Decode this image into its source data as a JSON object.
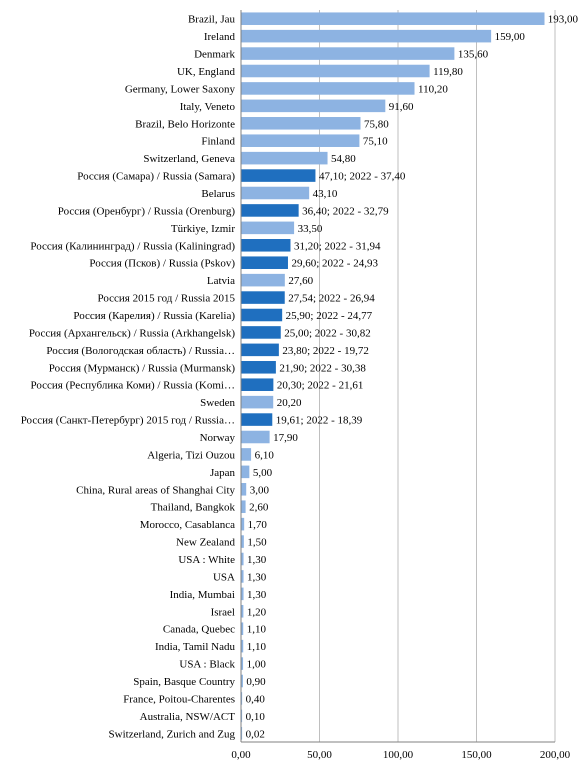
{
  "chart_data": {
    "type": "bar",
    "orientation": "horizontal",
    "title": "",
    "xlabel": "",
    "ylabel": "",
    "xlim": [
      0,
      200
    ],
    "grid": true,
    "legend": "none",
    "x_ticks": [
      "0,00",
      "50,00",
      "100,00",
      "150,00",
      "200,00"
    ],
    "x_tick_values": [
      0,
      50,
      100,
      150,
      200
    ],
    "colors": {
      "other": "#8db3e2",
      "russia": "#1f6fbf"
    },
    "categories": [
      {
        "label": "Brazil, Jau",
        "value": 193.0,
        "value_label": "193,00",
        "group": "other"
      },
      {
        "label": "Ireland",
        "value": 159.0,
        "value_label": "159,00",
        "group": "other"
      },
      {
        "label": "Denmark",
        "value": 135.6,
        "value_label": "135,60",
        "group": "other"
      },
      {
        "label": "UK, England",
        "value": 119.8,
        "value_label": "119,80",
        "group": "other"
      },
      {
        "label": "Germany, Lower Saxony",
        "value": 110.2,
        "value_label": "110,20",
        "group": "other"
      },
      {
        "label": "Italy, Veneto",
        "value": 91.6,
        "value_label": "91,60",
        "group": "other"
      },
      {
        "label": "Brazil, Belo Horizonte",
        "value": 75.8,
        "value_label": "75,80",
        "group": "other"
      },
      {
        "label": "Finland",
        "value": 75.1,
        "value_label": "75,10",
        "group": "other"
      },
      {
        "label": "Switzerland, Geneva",
        "value": 54.8,
        "value_label": "54,80",
        "group": "other"
      },
      {
        "label": "Россия (Самара) / Russia (Samara)",
        "value": 47.1,
        "value_label": "47,10; 2022 - 37,40",
        "group": "russia"
      },
      {
        "label": "Belarus",
        "value": 43.1,
        "value_label": "43,10",
        "group": "other"
      },
      {
        "label": "Россия (Оренбург) / Russia (Orenburg)",
        "value": 36.4,
        "value_label": "36,40; 2022 - 32,79",
        "group": "russia"
      },
      {
        "label": "Türkiye, Izmir",
        "value": 33.5,
        "value_label": "33,50",
        "group": "other"
      },
      {
        "label": "Россия (Калининград) / Russia (Kaliningrad)",
        "value": 31.2,
        "value_label": "31,20; 2022 - 31,94",
        "group": "russia"
      },
      {
        "label": "Россия (Псков) / Russia (Pskov)",
        "value": 29.6,
        "value_label": "29,60; 2022 - 24,93",
        "group": "russia"
      },
      {
        "label": "Latvia",
        "value": 27.6,
        "value_label": "27,60",
        "group": "other"
      },
      {
        "label": "Россия 2015 год / Russia 2015",
        "value": 27.54,
        "value_label": "27,54; 2022 - 26,94",
        "group": "russia"
      },
      {
        "label": "Россия (Карелия) / Russia (Karelia)",
        "value": 25.9,
        "value_label": "25,90; 2022 - 24,77",
        "group": "russia"
      },
      {
        "label": "Россия (Архангельск) / Russia (Arkhangelsk)",
        "value": 25.0,
        "value_label": "25,00; 2022 - 30,82",
        "group": "russia"
      },
      {
        "label": "Россия (Вологодская область) / Russia…",
        "value": 23.8,
        "value_label": "23,80; 2022 - 19,72",
        "group": "russia"
      },
      {
        "label": "Россия (Мурманск) / Russia (Murmansk)",
        "value": 21.9,
        "value_label": "21,90; 2022 - 30,38",
        "group": "russia"
      },
      {
        "label": "Россия (Республика Коми) / Russia (Komi…",
        "value": 20.3,
        "value_label": "20,30; 2022 - 21,61",
        "group": "russia"
      },
      {
        "label": "Sweden",
        "value": 20.2,
        "value_label": "20,20",
        "group": "other"
      },
      {
        "label": "Россия (Санкт-Петербург) 2015 год / Russia…",
        "value": 19.61,
        "value_label": "19,61; 2022 - 18,39",
        "group": "russia"
      },
      {
        "label": "Norway",
        "value": 17.9,
        "value_label": "17,90",
        "group": "other"
      },
      {
        "label": "Algeria, Tizi Ouzou",
        "value": 6.1,
        "value_label": "6,10",
        "group": "other"
      },
      {
        "label": "Japan",
        "value": 5.0,
        "value_label": "5,00",
        "group": "other"
      },
      {
        "label": "China, Rural areas of Shanghai City",
        "value": 3.0,
        "value_label": "3,00",
        "group": "other"
      },
      {
        "label": "Thailand, Bangkok",
        "value": 2.6,
        "value_label": "2,60",
        "group": "other"
      },
      {
        "label": "Morocco, Casablanca",
        "value": 1.7,
        "value_label": "1,70",
        "group": "other"
      },
      {
        "label": "New Zealand",
        "value": 1.5,
        "value_label": "1,50",
        "group": "other"
      },
      {
        "label": "USA : White",
        "value": 1.3,
        "value_label": "1,30",
        "group": "other"
      },
      {
        "label": "USA",
        "value": 1.3,
        "value_label": "1,30",
        "group": "other"
      },
      {
        "label": "India, Mumbai",
        "value": 1.3,
        "value_label": "1,30",
        "group": "other"
      },
      {
        "label": "Israel",
        "value": 1.2,
        "value_label": "1,20",
        "group": "other"
      },
      {
        "label": "Canada, Quebec",
        "value": 1.1,
        "value_label": "1,10",
        "group": "other"
      },
      {
        "label": "India, Tamil Nadu",
        "value": 1.1,
        "value_label": "1,10",
        "group": "other"
      },
      {
        "label": "USA : Black",
        "value": 1.0,
        "value_label": "1,00",
        "group": "other"
      },
      {
        "label": "Spain, Basque Country",
        "value": 0.9,
        "value_label": "0,90",
        "group": "other"
      },
      {
        "label": "France, Poitou-Charentes",
        "value": 0.4,
        "value_label": "0,40",
        "group": "other"
      },
      {
        "label": "Australia, NSW/ACT",
        "value": 0.1,
        "value_label": "0,10",
        "group": "other"
      },
      {
        "label": "Switzerland, Zurich and Zug",
        "value": 0.02,
        "value_label": "0,02",
        "group": "other"
      }
    ]
  }
}
